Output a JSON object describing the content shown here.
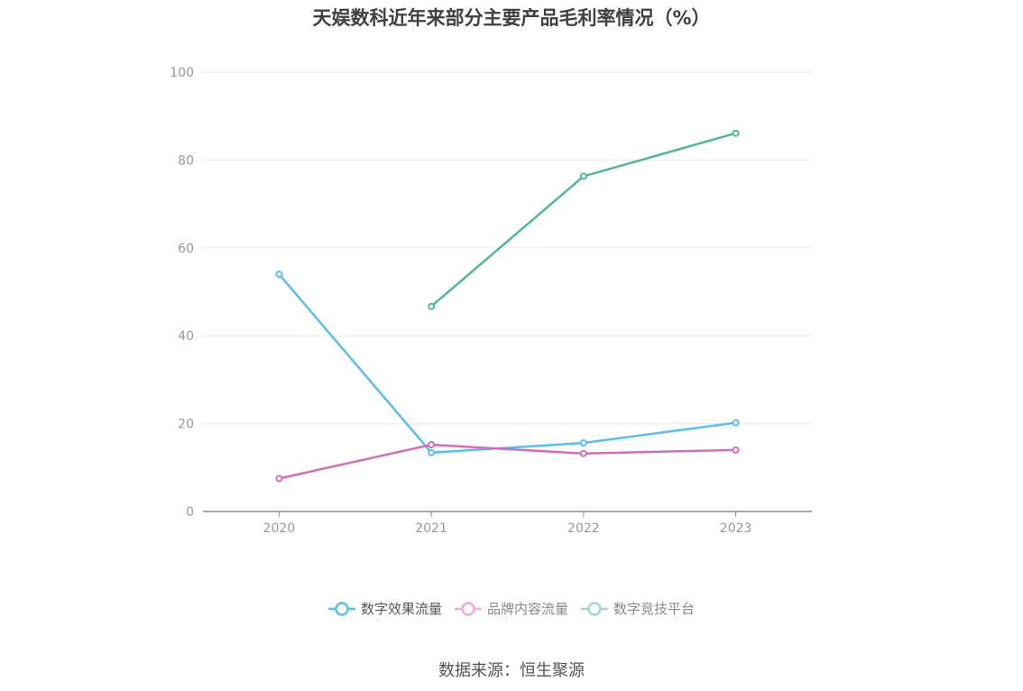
{
  "chart_data": {
    "type": "line",
    "title": "天娱数科近年来部分主要产品毛利率情况（%）",
    "categories": [
      "2020",
      "2021",
      "2022",
      "2023"
    ],
    "ylim": [
      0,
      100
    ],
    "yticks": [
      0,
      20,
      40,
      60,
      80,
      100
    ],
    "grid": true,
    "legend_position": "bottom",
    "series": [
      {
        "name": "数字效果流量",
        "color": "#5bbcf0",
        "values": [
          54.0,
          13.4,
          15.6,
          20.2
        ]
      },
      {
        "name": "品牌内容流量",
        "color": "#d36eb5",
        "values": [
          7.5,
          15.2,
          13.2,
          14.0
        ]
      },
      {
        "name": "数字竞技平台",
        "color": "#4fb69d",
        "values": [
          null,
          46.7,
          76.3,
          86.1
        ]
      }
    ]
  },
  "source": "数据来源：恒生聚源"
}
